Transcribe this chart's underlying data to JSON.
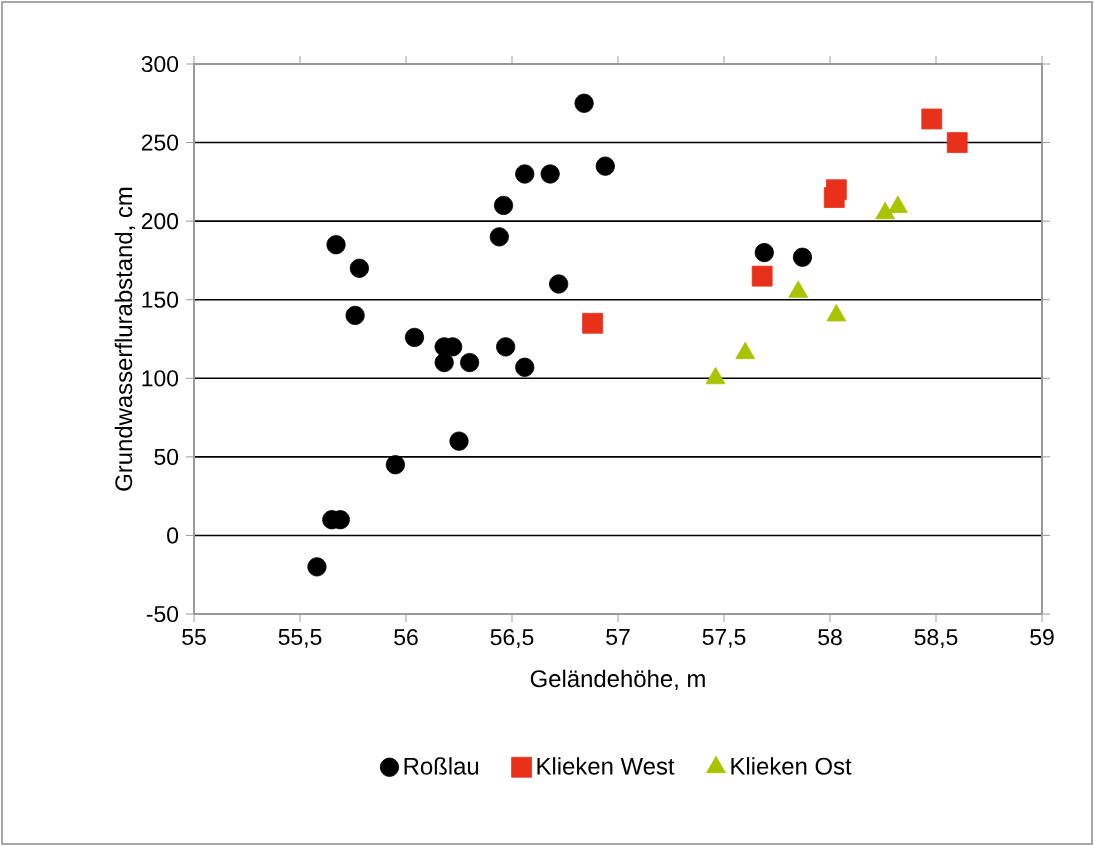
{
  "chart_data": {
    "type": "scatter",
    "xlabel": "Geländehöhe, m",
    "ylabel": "Grundwasserflurabstand, cm",
    "xlim": [
      55,
      59
    ],
    "ylim": [
      -50,
      300
    ],
    "xticks": [
      55,
      {
        "value": 55.5,
        "label": "55,5"
      },
      56,
      {
        "value": 56.5,
        "label": "56,5"
      },
      57,
      {
        "value": 57.5,
        "label": "57,5"
      },
      58,
      {
        "value": 58.5,
        "label": "58,5"
      },
      59
    ],
    "yticks": [
      -50,
      0,
      50,
      100,
      150,
      200,
      250,
      300
    ],
    "grid": "y",
    "legend": "bottom",
    "series": [
      {
        "name": "Roßlau",
        "color": "#000000",
        "marker": "circle",
        "x": [
          56.84,
          56.94,
          56.56,
          56.68,
          56.46,
          56.44,
          55.67,
          55.78,
          55.76,
          56.72,
          56.04,
          56.18,
          56.22,
          56.18,
          56.3,
          56.47,
          56.56,
          56.25,
          55.95,
          55.65,
          55.69,
          55.58,
          57.69,
          57.87
        ],
        "values": [
          275,
          235,
          230,
          230,
          210,
          190,
          185,
          170,
          140,
          160,
          126,
          120,
          120,
          110,
          110,
          120,
          107,
          60,
          45,
          10,
          10,
          -20,
          180,
          177
        ]
      },
      {
        "name": "Klieken West",
        "color": "#e8311a",
        "marker": "square",
        "x": [
          56.88,
          57.68,
          58.02,
          58.03,
          58.48,
          58.6
        ],
        "values": [
          135,
          165,
          215,
          220,
          265,
          250
        ]
      },
      {
        "name": "Klieken Ost",
        "color": "#a8c400",
        "marker": "triangle",
        "x": [
          57.46,
          57.6,
          57.85,
          58.03,
          58.26,
          58.32
        ],
        "values": [
          100,
          116,
          155,
          140,
          205,
          209
        ]
      }
    ]
  }
}
